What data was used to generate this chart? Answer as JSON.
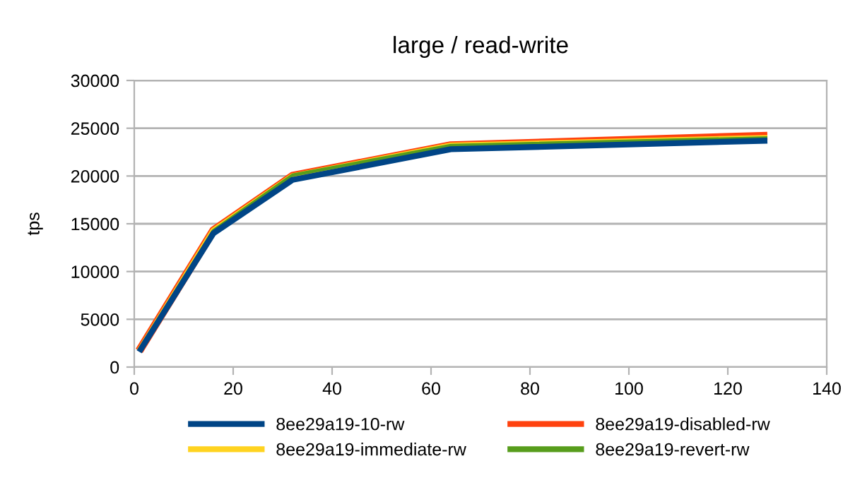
{
  "chart_data": {
    "type": "line",
    "title": "large / read-write",
    "ylabel": "tps",
    "x": [
      1,
      16,
      32,
      64,
      128
    ],
    "series": [
      {
        "name": "8ee29a19-10-rw",
        "color": "#004586",
        "values": [
          1600,
          14000,
          19600,
          22800,
          23700
        ]
      },
      {
        "name": "8ee29a19-disabled-rw",
        "color": "#ff420e",
        "values": [
          1700,
          14300,
          20000,
          23200,
          24200
        ]
      },
      {
        "name": "8ee29a19-immediate-rw",
        "color": "#ffd320",
        "values": [
          1700,
          14300,
          20000,
          23200,
          24000
        ]
      },
      {
        "name": "8ee29a19-revert-rw",
        "color": "#579d1c",
        "values": [
          1700,
          14300,
          20100,
          23200,
          24000
        ]
      }
    ],
    "xlim": [
      0,
      140
    ],
    "xticks": [
      0,
      20,
      40,
      60,
      80,
      100,
      120,
      140
    ],
    "ylim": [
      0,
      30000
    ],
    "yticks": [
      0,
      5000,
      10000,
      15000,
      20000,
      25000,
      30000
    ],
    "grid": "y",
    "legend": "bottom",
    "marker": "none",
    "line_style": "solid"
  }
}
